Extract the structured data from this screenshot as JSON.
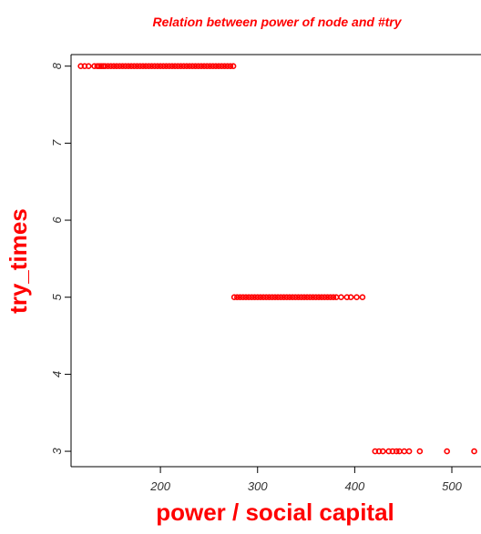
{
  "chart_data": {
    "type": "scatter",
    "title": "Relation between power of node and #try",
    "xlabel": "power / social capital",
    "ylabel": "try_times",
    "xlim": [
      108,
      530
    ],
    "ylim": [
      2.8,
      8.15
    ],
    "xticks": [
      200,
      300,
      400,
      500
    ],
    "xtick_labels": [
      "200",
      "300",
      "400",
      "500"
    ],
    "yticks": [
      3,
      4,
      5,
      6,
      7,
      8
    ],
    "ytick_labels": [
      "3",
      "4",
      "5",
      "6",
      "7",
      "8"
    ],
    "grid": false,
    "marker": "open circle",
    "colors": {
      "points": "#ff0000",
      "title": "#ff0000",
      "labels": "#ff0000",
      "axis": "#000000",
      "ticks": "#333333"
    },
    "series": [
      {
        "points": [
          {
            "x": 118,
            "y": 8
          },
          {
            "x": 122,
            "y": 8
          },
          {
            "x": 126,
            "y": 8
          },
          {
            "x": 132,
            "y": 8
          },
          {
            "x": 135,
            "y": 8
          },
          {
            "x": 137,
            "y": 8
          },
          {
            "x": 139,
            "y": 8
          },
          {
            "x": 141,
            "y": 8
          },
          {
            "x": 143,
            "y": 8
          },
          {
            "x": 146,
            "y": 8
          },
          {
            "x": 149,
            "y": 8
          },
          {
            "x": 152,
            "y": 8
          },
          {
            "x": 155,
            "y": 8
          },
          {
            "x": 158,
            "y": 8
          },
          {
            "x": 161,
            "y": 8
          },
          {
            "x": 164,
            "y": 8
          },
          {
            "x": 167,
            "y": 8
          },
          {
            "x": 170,
            "y": 8
          },
          {
            "x": 173,
            "y": 8
          },
          {
            "x": 176,
            "y": 8
          },
          {
            "x": 179,
            "y": 8
          },
          {
            "x": 182,
            "y": 8
          },
          {
            "x": 185,
            "y": 8
          },
          {
            "x": 188,
            "y": 8
          },
          {
            "x": 191,
            "y": 8
          },
          {
            "x": 194,
            "y": 8
          },
          {
            "x": 197,
            "y": 8
          },
          {
            "x": 200,
            "y": 8
          },
          {
            "x": 203,
            "y": 8
          },
          {
            "x": 206,
            "y": 8
          },
          {
            "x": 209,
            "y": 8
          },
          {
            "x": 212,
            "y": 8
          },
          {
            "x": 215,
            "y": 8
          },
          {
            "x": 218,
            "y": 8
          },
          {
            "x": 221,
            "y": 8
          },
          {
            "x": 224,
            "y": 8
          },
          {
            "x": 227,
            "y": 8
          },
          {
            "x": 230,
            "y": 8
          },
          {
            "x": 233,
            "y": 8
          },
          {
            "x": 236,
            "y": 8
          },
          {
            "x": 239,
            "y": 8
          },
          {
            "x": 242,
            "y": 8
          },
          {
            "x": 245,
            "y": 8
          },
          {
            "x": 248,
            "y": 8
          },
          {
            "x": 251,
            "y": 8
          },
          {
            "x": 254,
            "y": 8
          },
          {
            "x": 257,
            "y": 8
          },
          {
            "x": 260,
            "y": 8
          },
          {
            "x": 263,
            "y": 8
          },
          {
            "x": 266,
            "y": 8
          },
          {
            "x": 269,
            "y": 8
          },
          {
            "x": 272,
            "y": 8
          },
          {
            "x": 275,
            "y": 8
          },
          {
            "x": 276,
            "y": 5
          },
          {
            "x": 279,
            "y": 5
          },
          {
            "x": 282,
            "y": 5
          },
          {
            "x": 285,
            "y": 5
          },
          {
            "x": 288,
            "y": 5
          },
          {
            "x": 291,
            "y": 5
          },
          {
            "x": 294,
            "y": 5
          },
          {
            "x": 297,
            "y": 5
          },
          {
            "x": 300,
            "y": 5
          },
          {
            "x": 303,
            "y": 5
          },
          {
            "x": 306,
            "y": 5
          },
          {
            "x": 309,
            "y": 5
          },
          {
            "x": 312,
            "y": 5
          },
          {
            "x": 315,
            "y": 5
          },
          {
            "x": 318,
            "y": 5
          },
          {
            "x": 321,
            "y": 5
          },
          {
            "x": 324,
            "y": 5
          },
          {
            "x": 327,
            "y": 5
          },
          {
            "x": 330,
            "y": 5
          },
          {
            "x": 333,
            "y": 5
          },
          {
            "x": 336,
            "y": 5
          },
          {
            "x": 339,
            "y": 5
          },
          {
            "x": 342,
            "y": 5
          },
          {
            "x": 345,
            "y": 5
          },
          {
            "x": 348,
            "y": 5
          },
          {
            "x": 351,
            "y": 5
          },
          {
            "x": 354,
            "y": 5
          },
          {
            "x": 357,
            "y": 5
          },
          {
            "x": 360,
            "y": 5
          },
          {
            "x": 363,
            "y": 5
          },
          {
            "x": 366,
            "y": 5
          },
          {
            "x": 369,
            "y": 5
          },
          {
            "x": 372,
            "y": 5
          },
          {
            "x": 375,
            "y": 5
          },
          {
            "x": 378,
            "y": 5
          },
          {
            "x": 381,
            "y": 5
          },
          {
            "x": 386,
            "y": 5
          },
          {
            "x": 392,
            "y": 5
          },
          {
            "x": 396,
            "y": 5
          },
          {
            "x": 402,
            "y": 5
          },
          {
            "x": 408,
            "y": 5
          },
          {
            "x": 421,
            "y": 3
          },
          {
            "x": 425,
            "y": 3
          },
          {
            "x": 429,
            "y": 3
          },
          {
            "x": 435,
            "y": 3
          },
          {
            "x": 439,
            "y": 3
          },
          {
            "x": 443,
            "y": 3
          },
          {
            "x": 446,
            "y": 3
          },
          {
            "x": 451,
            "y": 3
          },
          {
            "x": 456,
            "y": 3
          },
          {
            "x": 467,
            "y": 3
          },
          {
            "x": 495,
            "y": 3
          },
          {
            "x": 523,
            "y": 3
          }
        ]
      }
    ]
  }
}
